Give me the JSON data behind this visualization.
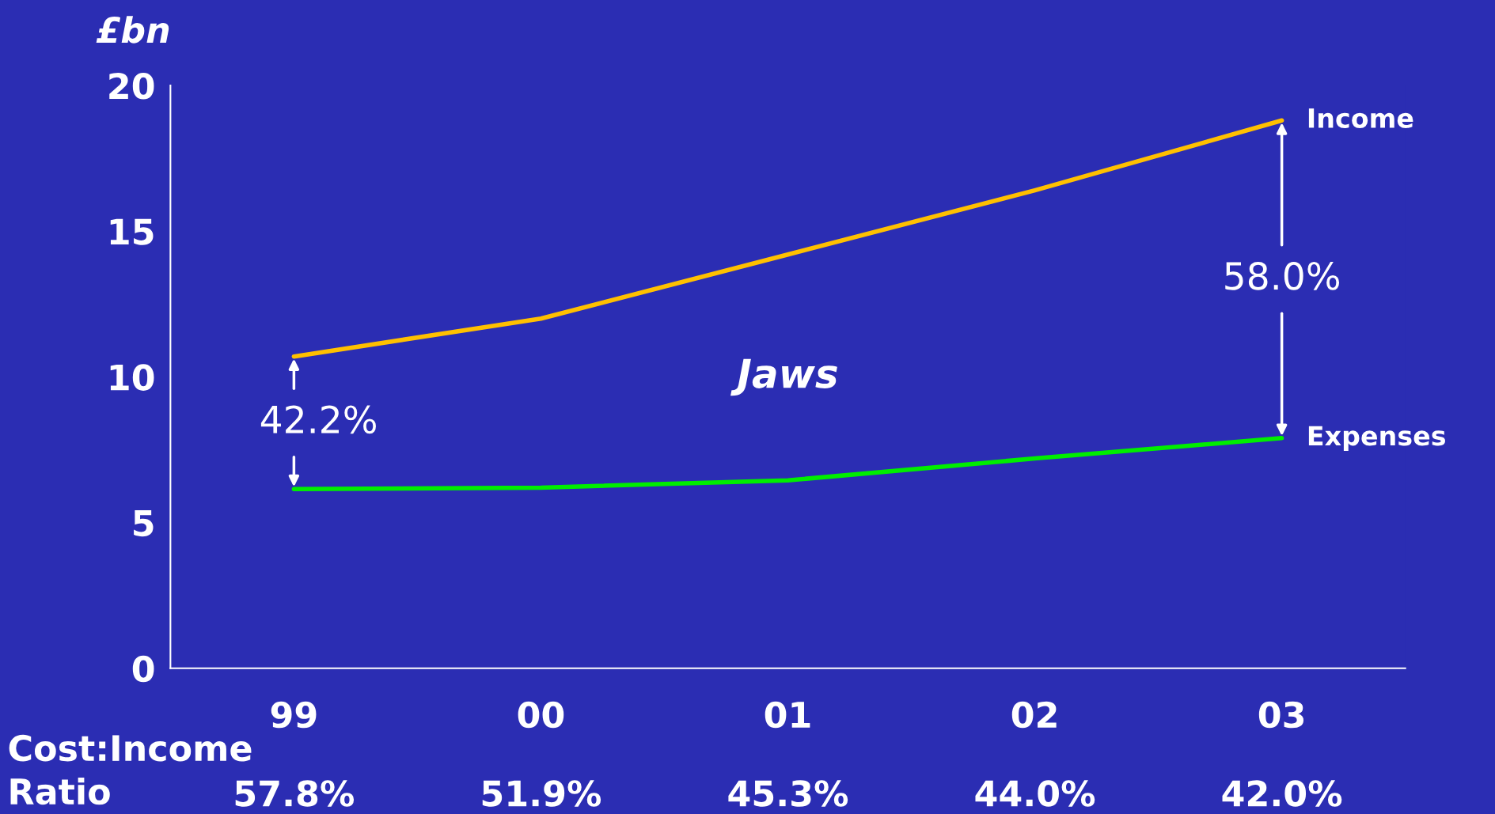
{
  "chart_data": {
    "type": "line",
    "ylabel": "£bn",
    "categories": [
      "99",
      "00",
      "01",
      "02",
      "03"
    ],
    "series": [
      {
        "name": "Income",
        "color": "#ffc000",
        "values": [
          10.7,
          12.0,
          14.2,
          16.4,
          18.8
        ]
      },
      {
        "name": "Expenses",
        "color": "#00ee00",
        "values": [
          6.15,
          6.2,
          6.45,
          7.2,
          7.9
        ]
      }
    ],
    "ylim": [
      0,
      20
    ],
    "yticks": [
      0,
      5,
      10,
      15,
      20
    ],
    "grid": false,
    "legend": false,
    "marker": "none",
    "line_style": "solid",
    "annotations": [
      {
        "text": "42.2%",
        "x": "99",
        "y": 10.7
      },
      {
        "text": "58.0%",
        "x": "03",
        "y": 18.8
      },
      "Jaws",
      "Cost:Income\nRatio",
      "57.8%",
      "51.9%",
      "45.3%",
      "44.0%",
      "42.0%"
    ]
  }
}
